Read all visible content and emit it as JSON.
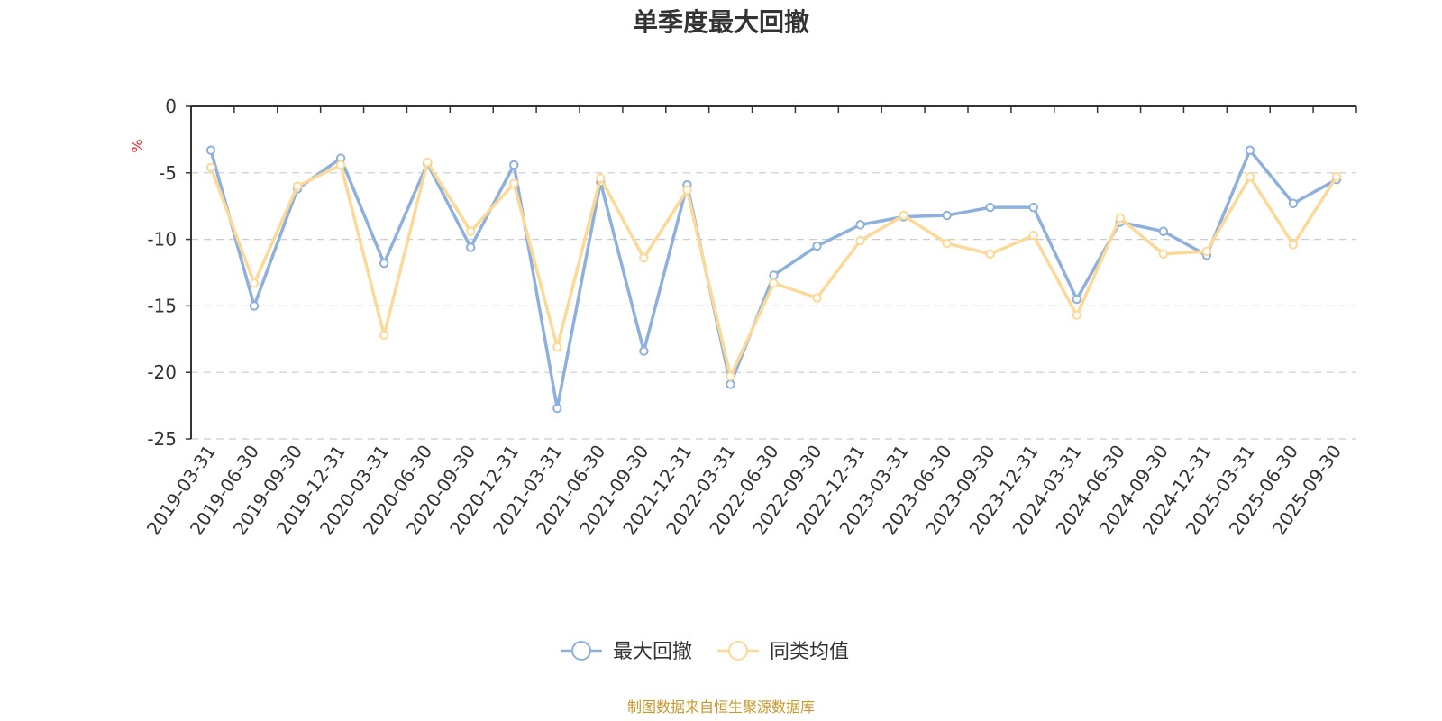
{
  "colors": {
    "series1": "#8eb0dc",
    "series2": "#fcd997",
    "text": "#333333",
    "unit": "#e02020",
    "source": "#c8962a",
    "grid": "#cccccc"
  },
  "chart_data": {
    "type": "line",
    "title": "单季度最大回撤",
    "ylabel": "%",
    "ylim": [
      -25,
      0
    ],
    "yticks": [
      0,
      -5,
      -10,
      -15,
      -20,
      -25
    ],
    "grid": true,
    "legend_position": "bottom-center",
    "categories": [
      "2019-03-31",
      "2019-06-30",
      "2019-09-30",
      "2019-12-31",
      "2020-03-31",
      "2020-06-30",
      "2020-09-30",
      "2020-12-31",
      "2021-03-31",
      "2021-06-30",
      "2021-09-30",
      "2021-12-31",
      "2022-03-31",
      "2022-06-30",
      "2022-09-30",
      "2022-12-31",
      "2023-03-31",
      "2023-06-30",
      "2023-09-30",
      "2023-12-31",
      "2024-03-31",
      "2024-06-30",
      "2024-09-30",
      "2024-12-31",
      "2025-03-31",
      "2025-06-30",
      "2025-09-30"
    ],
    "series": [
      {
        "name": "最大回撤",
        "values": [
          -3.3,
          -15.0,
          -6.2,
          -3.9,
          -11.8,
          -4.3,
          -10.6,
          -4.4,
          -22.7,
          -5.7,
          -18.4,
          -5.9,
          -20.9,
          -12.7,
          -10.5,
          -8.9,
          -8.3,
          -8.2,
          -7.6,
          -7.6,
          -14.5,
          -8.7,
          -9.4,
          -11.2,
          -3.3,
          -7.3,
          -5.5
        ]
      },
      {
        "name": "同类均值",
        "values": [
          -4.6,
          -13.3,
          -6.0,
          -4.4,
          -17.2,
          -4.2,
          -9.4,
          -5.8,
          -18.1,
          -5.4,
          -11.4,
          -6.3,
          -20.3,
          -13.3,
          -14.4,
          -10.1,
          -8.2,
          -10.3,
          -11.1,
          -9.7,
          -15.7,
          -8.4,
          -11.1,
          -10.9,
          -5.3,
          -10.4,
          -5.3
        ]
      }
    ]
  },
  "footer": {
    "source": "制图数据来自恒生聚源数据库"
  }
}
